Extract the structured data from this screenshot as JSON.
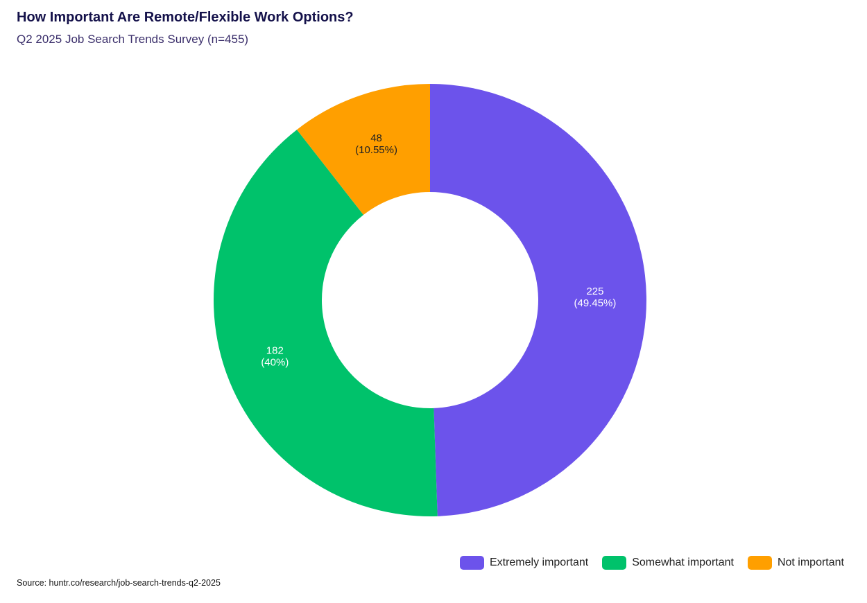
{
  "chart_data": {
    "type": "pie",
    "title": "How Important Are Remote/Flexible Work Options?",
    "subtitle": "Q2 2025 Job Search Trends Survey (n=455)",
    "donut": true,
    "slices": [
      {
        "label": "Extremely important",
        "value": 225,
        "percent_label": "(49.45%)",
        "color": "#6c53eb",
        "text_color": "#ffffff"
      },
      {
        "label": "Somewhat important",
        "value": 182,
        "percent_label": "(40%)",
        "color": "#00c26b",
        "text_color": "#ffffff"
      },
      {
        "label": "Not important",
        "value": 48,
        "percent_label": "(10.55%)",
        "color": "#ff9f00",
        "text_color": "#222222"
      }
    ],
    "legend_placement": "bottom-right",
    "source": "Source: huntr.co/research/job-search-trends-q2-2025"
  }
}
